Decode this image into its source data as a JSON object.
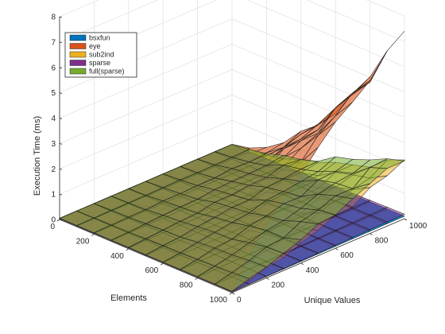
{
  "chart_data": {
    "type": "surface3d",
    "title": "",
    "xlabel": "Unique Values",
    "ylabel": "Elements",
    "zlabel": "Execution Time (ms)",
    "x": [
      0,
      100,
      200,
      300,
      400,
      500,
      600,
      700,
      800,
      900,
      1000
    ],
    "y": [
      0,
      100,
      200,
      300,
      400,
      500,
      600,
      700,
      800,
      900,
      1000
    ],
    "zlim": [
      0,
      8
    ],
    "x_ticks": [
      "0",
      "200",
      "400",
      "600",
      "800",
      "1000"
    ],
    "y_ticks": [
      "0",
      "200",
      "400",
      "600",
      "800",
      "1000"
    ],
    "z_ticks": [
      "0",
      "1",
      "2",
      "3",
      "4",
      "5",
      "6",
      "7",
      "8"
    ],
    "grid": true,
    "legend_position": "top-left",
    "series": [
      {
        "name": "bsxfun",
        "color": "#0072BD"
      },
      {
        "name": "eye",
        "color": "#D95319"
      },
      {
        "name": "sub2ind",
        "color": "#EDB120"
      },
      {
        "name": "sparse",
        "color": "#7E2F8E"
      },
      {
        "name": "full(sparse)",
        "color": "#77AC30"
      }
    ]
  }
}
